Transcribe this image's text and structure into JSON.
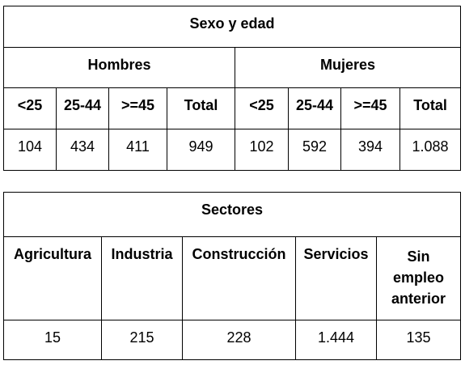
{
  "age_table": {
    "title": "Sexo y edad",
    "groups": [
      "Hombres",
      "Mujeres"
    ],
    "columns": [
      "<25",
      "25-44",
      ">=45",
      "Total",
      "<25",
      "25-44",
      ">=45",
      "Total"
    ],
    "values": [
      "104",
      "434",
      "411",
      "949",
      "102",
      "592",
      "394",
      "1.088"
    ]
  },
  "sector_table": {
    "title": "Sectores",
    "columns": [
      "Agricultura",
      "Industria",
      "Construcción",
      "Servicios",
      "Sin empleo anterior"
    ],
    "values": [
      "15",
      "215",
      "228",
      "1.444",
      "135"
    ]
  }
}
